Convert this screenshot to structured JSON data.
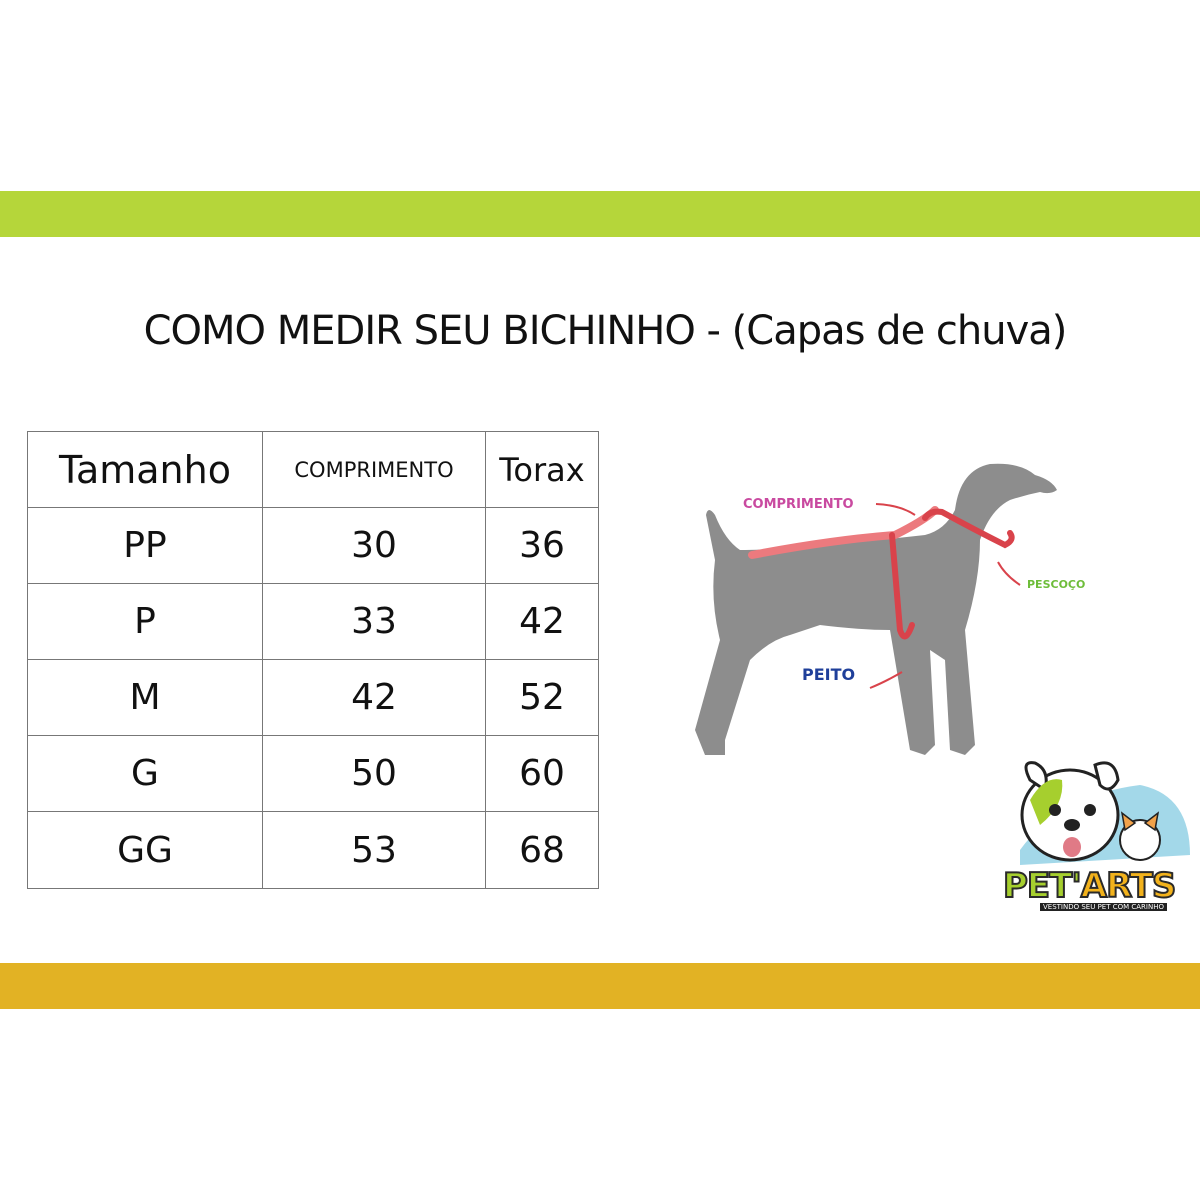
{
  "title": "COMO MEDIR SEU BICHINHO - (Capas de chuva)",
  "colors": {
    "top_bar": "#b5d63a",
    "bottom_bar": "#e2b224",
    "dog": "#8d8d8d",
    "measure_band": "#e0545a"
  },
  "table": {
    "headers": [
      "Tamanho",
      "COMPRIMENTO",
      "Torax"
    ],
    "rows": [
      [
        "PP",
        "30",
        "36"
      ],
      [
        "P",
        "33",
        "42"
      ],
      [
        "M",
        "42",
        "52"
      ],
      [
        "G",
        "50",
        "60"
      ],
      [
        "GG",
        "53",
        "68"
      ]
    ]
  },
  "diagram": {
    "labels": {
      "length": "COMPRIMENTO",
      "neck": "PESCOÇO",
      "chest": "PEITO"
    }
  },
  "logo": {
    "name_a": "PET'",
    "name_b": "ARTS",
    "tagline": "VESTINDO SEU PET COM CARINHO"
  }
}
